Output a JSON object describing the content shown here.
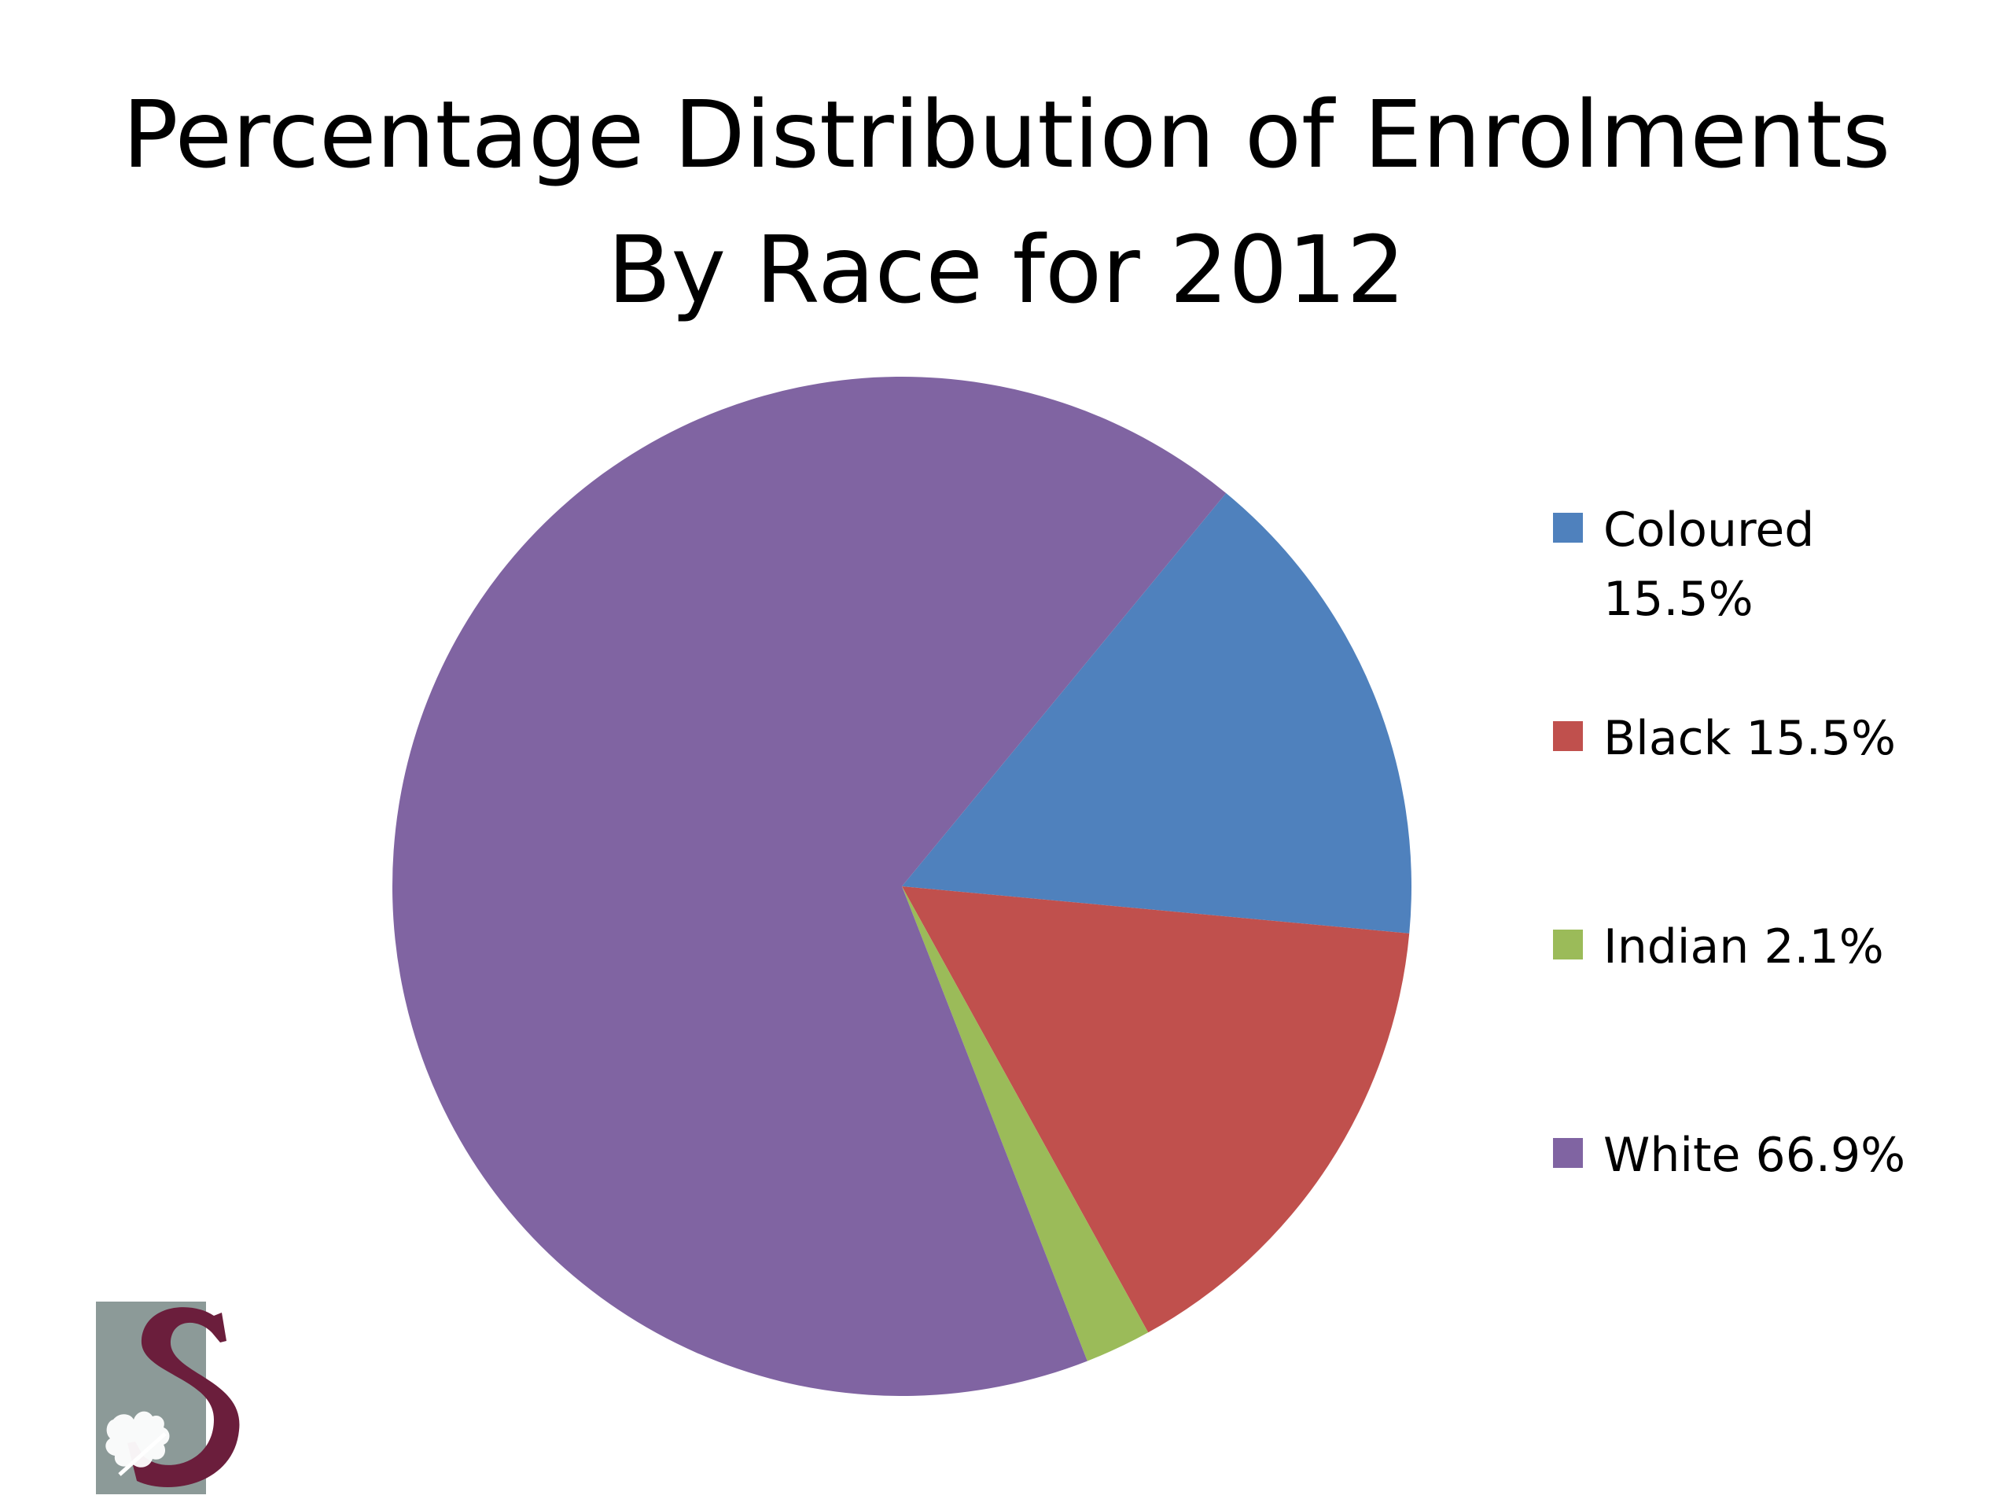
{
  "title_lines": [
    "Percentage Distribution of Enrolments",
    "By Race for 2012"
  ],
  "chart_data": {
    "type": "pie",
    "title": "Percentage Distribution of Enrolments By Race for 2012",
    "slices": [
      {
        "label": "Coloured",
        "value": 15.5,
        "color": "#4F81BD",
        "legend": "Coloured 15.5%"
      },
      {
        "label": "Black",
        "value": 15.5,
        "color": "#C0504D",
        "legend": "Black 15.5%"
      },
      {
        "label": "Indian",
        "value": 2.1,
        "color": "#9BBB59",
        "legend": "Indian 2.1%"
      },
      {
        "label": "White",
        "value": 66.9,
        "color": "#8064A2",
        "legend": "White 66.9%"
      }
    ],
    "legend_position": "right"
  },
  "logo": {
    "icon": "university-crest-icon",
    "letter": "S",
    "colors": {
      "panel": "#8C9A98",
      "letter": "#6B1E3C"
    }
  }
}
